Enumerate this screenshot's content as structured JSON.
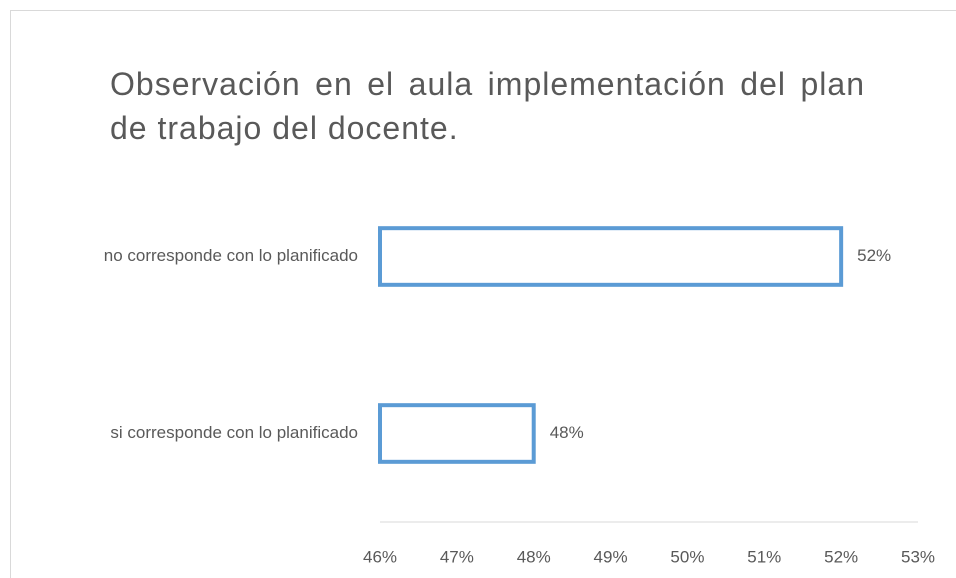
{
  "chart_data": {
    "type": "barh",
    "title": "Observación en el aula implementación del plan de trabajo del docente.",
    "categories": [
      "no corresponde con lo planificado",
      "si corresponde con lo planificado"
    ],
    "values": [
      52,
      48
    ],
    "value_labels": [
      "52%",
      "48%"
    ],
    "color": "#5b9bd5",
    "xlim": [
      46,
      53
    ],
    "xticks": [
      {
        "value": 46,
        "label": "46%"
      },
      {
        "value": 47,
        "label": "47%"
      },
      {
        "value": 48,
        "label": "48%"
      },
      {
        "value": 49,
        "label": "49%"
      },
      {
        "value": 50,
        "label": "50%"
      },
      {
        "value": 51,
        "label": "51%"
      },
      {
        "value": 52,
        "label": "52%"
      },
      {
        "value": 53,
        "label": "53%"
      }
    ],
    "grid": false
  }
}
